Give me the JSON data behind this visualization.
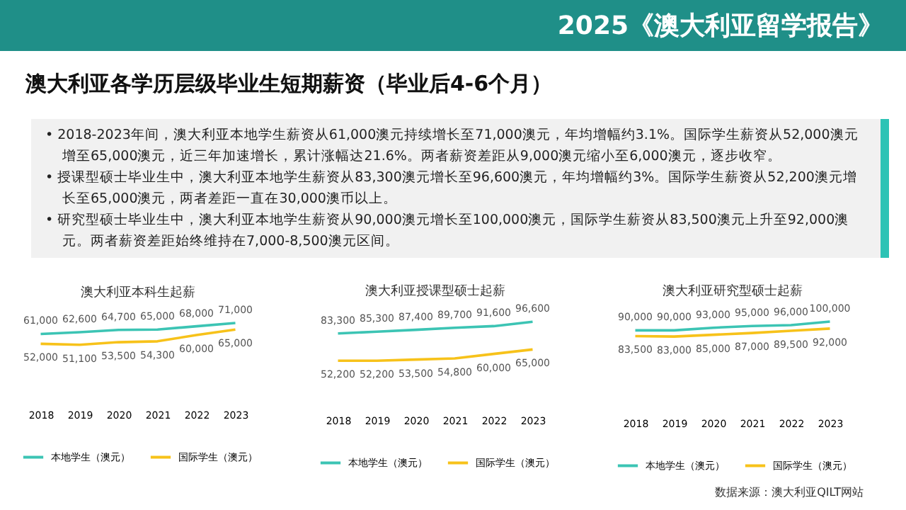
{
  "chart_data": [
    {
      "type": "other",
      "title": "澳大利亚各学历层级毕业生短期薪资（毕业后4-6个月）",
      "subtitle": "2025《澳大利亚留学报告》",
      "annotations": [
        "• 2018-2023年间，澳大利亚本地学生薪资从61,000澳元持续增长至71,000澳元，年均增幅约3.1%。国际学生薪资从52,000澳元增至65,000澳元，近三年加速增长，累计涨幅达21.6%。两者薪资差距从9,000澳元缩小至6,000澳元，逐步收窄。",
        "• 授课型硕士毕业生中，澳大利亚本地学生薪资从83,300澳元增长至96,600澳元，年均增幅约3%。国际学生薪资从52,200澳元增长至65,000澳元，两者差距一直在30,000澳币以上。",
        "• 研究型硕士毕业生中，澳大利亚本地学生薪资从90,000澳元增长至100,000澳元，国际学生薪资从83,500澳元上升至92,000澳元。两者薪资差距始终维持在7,000-8,500澳元区间。",
        "数据来源：澳大利亚QILT网站"
      ]
    },
    {
      "type": "line",
      "title": "澳大利亚本科生起薪",
      "categories": [
        "2018",
        "2019",
        "2020",
        "2021",
        "2022",
        "2023"
      ],
      "legend": "bottom",
      "marker": "none",
      "line_style": "solid",
      "series": [
        {
          "name": "本地学生（澳元）",
          "color": "#3cc4b4",
          "values": [
            61000,
            62600,
            64700,
            65000,
            68000,
            71000
          ],
          "value_labels": [
            "61,000",
            "62,600",
            "64,700",
            "65,000",
            "68,000",
            "71,000"
          ]
        },
        {
          "name": "国际学生（澳元）",
          "color": "#f7c21a",
          "values": [
            52000,
            51100,
            53500,
            54300,
            60000,
            65000
          ],
          "value_labels": [
            "52,000",
            "51,100",
            "53,500",
            "54,300",
            "60,000",
            "65,000"
          ]
        }
      ]
    },
    {
      "type": "line",
      "title": "澳大利亚授课型硕士起薪",
      "categories": [
        "2018",
        "2019",
        "2020",
        "2021",
        "2022",
        "2023"
      ],
      "legend": "bottom",
      "marker": "none",
      "line_style": "solid",
      "series": [
        {
          "name": "本地学生（澳元）",
          "color": "#3cc4b4",
          "values": [
            83300,
            85300,
            87400,
            89700,
            91600,
            96600
          ],
          "value_labels": [
            "83,300",
            "85,300",
            "87,400",
            "89,700",
            "91,600",
            "96,600"
          ]
        },
        {
          "name": "国际学生（澳元）",
          "color": "#f7c21a",
          "values": [
            52200,
            52200,
            53500,
            54800,
            60000,
            65000
          ],
          "value_labels": [
            "52,200",
            "52,200",
            "53,500",
            "54,800",
            "60,000",
            "65,000"
          ]
        }
      ]
    },
    {
      "type": "line",
      "title": "澳大利亚研究型硕士起薪",
      "categories": [
        "2018",
        "2019",
        "2020",
        "2021",
        "2022",
        "2023"
      ],
      "legend": "bottom",
      "marker": "none",
      "line_style": "solid",
      "series": [
        {
          "name": "本地学生（澳元）",
          "color": "#3cc4b4",
          "values": [
            90000,
            90000,
            93000,
            95000,
            96000,
            100000
          ],
          "value_labels": [
            "90,000",
            "90,000",
            "93,000",
            "95,000",
            "96,000",
            "100,000"
          ]
        },
        {
          "name": "国际学生（澳元）",
          "color": "#f7c21a",
          "values": [
            83500,
            83000,
            85000,
            87000,
            89500,
            92000
          ],
          "value_labels": [
            "83,500",
            "83,000",
            "85,000",
            "87,000",
            "89,500",
            "92,000"
          ]
        }
      ]
    }
  ]
}
